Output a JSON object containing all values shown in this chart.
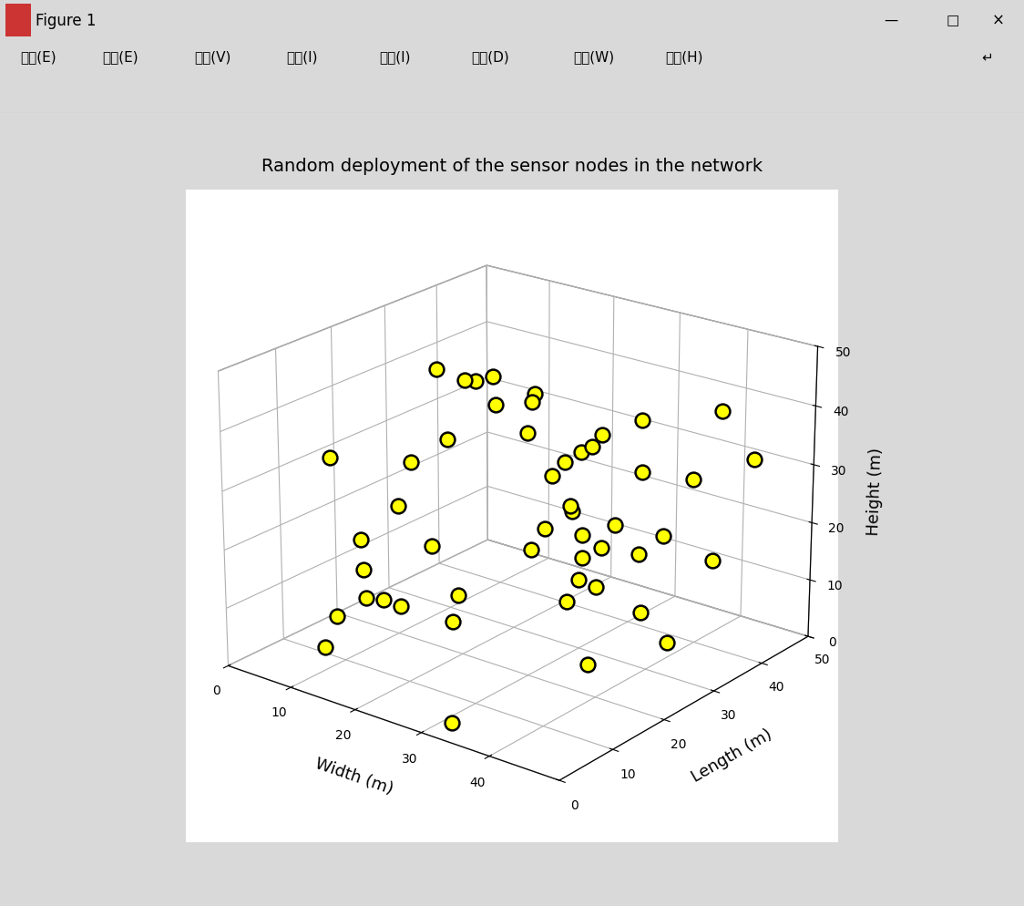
{
  "title": "Random deployment of the sensor nodes in the network",
  "xlabel": "Width (m)",
  "ylabel": "Length (m)",
  "zlabel": "Height (m)",
  "xlim": [
    0,
    50
  ],
  "ylim": [
    0,
    50
  ],
  "zlim": [
    0,
    50
  ],
  "xticks": [
    0,
    10,
    20,
    30,
    40
  ],
  "yticks": [
    0,
    10,
    20,
    30,
    40,
    50
  ],
  "zticks": [
    0,
    10,
    20,
    30,
    40,
    50
  ],
  "marker_color": "#FFFF00",
  "marker_edge_color": "#000000",
  "marker_size": 130,
  "background_color": "#D9D9D9",
  "plot_bg_color": "#FFFFFF",
  "window_bg": "#E8E8F0",
  "titlebar_bg": "#D6E4F7",
  "menubar_bg": "#F0F0F0",
  "toolbar_bg": "#F0F0F0",
  "title_fontsize": 14,
  "label_fontsize": 13,
  "tick_fontsize": 10,
  "elev": 22,
  "azim": -52,
  "random_seed": 7,
  "n_points": 50,
  "window_title": "Figure 1",
  "menu_items": [
    "文件(E)",
    "编辑(E)",
    "查看(V)",
    "插入(I)",
    "工具(I)",
    "桌面(D)",
    "窗口(W)",
    "帮助(H)"
  ]
}
